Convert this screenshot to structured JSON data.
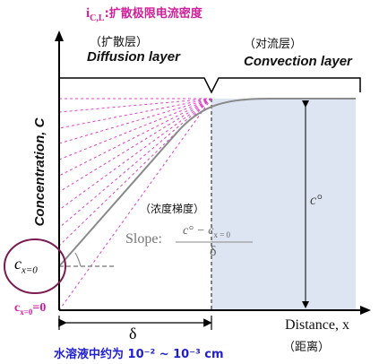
{
  "top_label": {
    "symbol": "i",
    "subscript": "C,L",
    "suffix": ":扩散极限电流密度",
    "color": "#d0209a"
  },
  "diffusion_layer": {
    "cn": "（扩散层）",
    "en": "Diffusion layer"
  },
  "convection_layer": {
    "cn": "（对流层）",
    "en": "Convection layer"
  },
  "y_axis_label": "Concentration, C",
  "x_axis_label": "Distance, x",
  "x_axis_cn": "（距离）",
  "bulk_concentration_label": "c°",
  "gradient_cn": "（浓度梯度）",
  "slope": {
    "label": "Slope:",
    "numerator": "c° − c",
    "numerator_sub": "x = 0",
    "denominator": "δ"
  },
  "c_surface": {
    "symbol": "c",
    "subscript": "x=0"
  },
  "c_zero": {
    "symbol": "c",
    "subscript": "x=0",
    "suffix": "=0"
  },
  "delta_label": "δ",
  "bottom_note": "水溶液中约为 10⁻² ~ 10⁻³ cm",
  "colors": {
    "dashed_rays": "#e040c8",
    "convection_fill": "#dde5f3",
    "profile_curve": "#8a8a8a",
    "circle": "#7a1a52",
    "bottom_note": "#1f1fd0"
  }
}
